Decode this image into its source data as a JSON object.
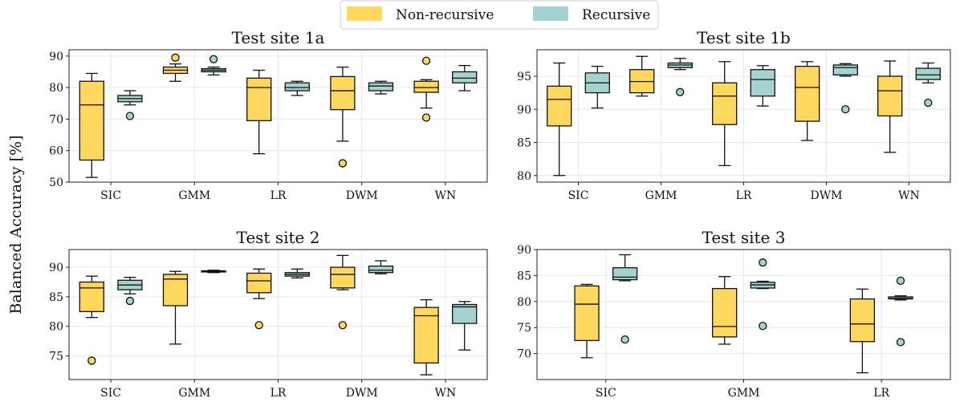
{
  "colors": {
    "non_recursive": "#FFD75E",
    "recursive": "#A4D3D2"
  },
  "legend": {
    "non_recursive": "Non-recursive",
    "recursive": "Recursive"
  },
  "ylabel": "Balanced Accuracy [%]",
  "chart_data": [
    {
      "type": "box",
      "title": "Test site 1a",
      "categories": [
        "SIC",
        "GMM",
        "LR",
        "DWM",
        "WN"
      ],
      "ylim": [
        50,
        92
      ],
      "yticks": [
        50,
        60,
        70,
        80,
        90
      ],
      "grid": true,
      "series": [
        {
          "name": "Non-recursive",
          "boxes": [
            {
              "min": 51.5,
              "q1": 57,
              "median": 74.5,
              "q3": 82,
              "max": 84.5,
              "outliers": []
            },
            {
              "min": 82,
              "q1": 84.5,
              "median": 85.5,
              "q3": 86.5,
              "max": 87.5,
              "outliers": [
                89.5
              ]
            },
            {
              "min": 59,
              "q1": 69.5,
              "median": 80,
              "q3": 83,
              "max": 85.5,
              "outliers": []
            },
            {
              "min": 63,
              "q1": 73,
              "median": 79,
              "q3": 83.5,
              "max": 86.5,
              "outliers": [
                56
              ]
            },
            {
              "min": 73.5,
              "q1": 78.5,
              "median": 80,
              "q3": 82,
              "max": 82.5,
              "outliers": [
                88.5,
                70.5
              ]
            }
          ]
        },
        {
          "name": "Recursive",
          "boxes": [
            {
              "min": 74.5,
              "q1": 75.5,
              "median": 76.5,
              "q3": 77.5,
              "max": 79,
              "outliers": [
                71
              ]
            },
            {
              "min": 84,
              "q1": 85,
              "median": 85.5,
              "q3": 86,
              "max": 86.5,
              "outliers": [
                89
              ]
            },
            {
              "min": 77.5,
              "q1": 79,
              "median": 80,
              "q3": 81.5,
              "max": 82,
              "outliers": []
            },
            {
              "min": 78,
              "q1": 79,
              "median": 80.5,
              "q3": 81.5,
              "max": 82,
              "outliers": []
            },
            {
              "min": 79,
              "q1": 81.5,
              "median": 83,
              "q3": 85,
              "max": 87,
              "outliers": []
            }
          ]
        }
      ]
    },
    {
      "type": "box",
      "title": "Test site 1b",
      "categories": [
        "SIC",
        "GMM",
        "LR",
        "DWM",
        "WN"
      ],
      "ylim": [
        79,
        99
      ],
      "yticks": [
        80,
        85,
        90,
        95
      ],
      "grid": true,
      "series": [
        {
          "name": "Non-recursive",
          "boxes": [
            {
              "min": 80,
              "q1": 87.5,
              "median": 91.5,
              "q3": 93.5,
              "max": 97,
              "outliers": []
            },
            {
              "min": 92,
              "q1": 92.5,
              "median": 94.2,
              "q3": 96,
              "max": 98,
              "outliers": []
            },
            {
              "min": 81.5,
              "q1": 87.7,
              "median": 92,
              "q3": 94,
              "max": 97.2,
              "outliers": []
            },
            {
              "min": 85.3,
              "q1": 88.2,
              "median": 93.3,
              "q3": 96.5,
              "max": 97.2,
              "outliers": []
            },
            {
              "min": 83.5,
              "q1": 89,
              "median": 92.8,
              "q3": 95,
              "max": 97.3,
              "outliers": []
            }
          ]
        },
        {
          "name": "Recursive",
          "boxes": [
            {
              "min": 90.2,
              "q1": 92.5,
              "median": 94,
              "q3": 95.5,
              "max": 96.5,
              "outliers": []
            },
            {
              "min": 96,
              "q1": 96.3,
              "median": 96.7,
              "q3": 97,
              "max": 97.7,
              "outliers": [
                92.6
              ]
            },
            {
              "min": 90.5,
              "q1": 92,
              "median": 94.5,
              "q3": 96,
              "max": 96.6,
              "outliers": []
            },
            {
              "min": 95,
              "q1": 95.2,
              "median": 96.3,
              "q3": 96.7,
              "max": 96.9,
              "outliers": [
                90
              ]
            },
            {
              "min": 94,
              "q1": 94.5,
              "median": 95.2,
              "q3": 96.2,
              "max": 97,
              "outliers": [
                91
              ]
            }
          ]
        }
      ]
    },
    {
      "type": "box",
      "title": "Test site 2",
      "categories": [
        "SIC",
        "GMM",
        "LR",
        "DWM",
        "WN"
      ],
      "ylim": [
        71,
        93
      ],
      "yticks": [
        75,
        80,
        85,
        90
      ],
      "grid": true,
      "series": [
        {
          "name": "Non-recursive",
          "boxes": [
            {
              "min": 81.5,
              "q1": 82.5,
              "median": 86.5,
              "q3": 87.5,
              "max": 88.5,
              "outliers": [
                74.2
              ]
            },
            {
              "min": 77,
              "q1": 83.5,
              "median": 88,
              "q3": 88.8,
              "max": 89.3,
              "outliers": []
            },
            {
              "min": 84.7,
              "q1": 85.7,
              "median": 87.7,
              "q3": 89,
              "max": 89.7,
              "outliers": [
                80.2
              ]
            },
            {
              "min": 86.2,
              "q1": 86.5,
              "median": 88.8,
              "q3": 90,
              "max": 92,
              "outliers": [
                80.2
              ]
            },
            {
              "min": 71.8,
              "q1": 73.8,
              "median": 81.8,
              "q3": 83.2,
              "max": 84.5,
              "outliers": []
            }
          ]
        },
        {
          "name": "Recursive",
          "boxes": [
            {
              "min": 85.5,
              "q1": 86.2,
              "median": 87,
              "q3": 87.8,
              "max": 88.3,
              "outliers": [
                84.3
              ]
            },
            {
              "min": 89.1,
              "q1": 89.2,
              "median": 89.3,
              "q3": 89.4,
              "max": 89.5,
              "outliers": []
            },
            {
              "min": 88.2,
              "q1": 88.5,
              "median": 88.8,
              "q3": 89.1,
              "max": 89.7,
              "outliers": []
            },
            {
              "min": 88.9,
              "q1": 89.1,
              "median": 89.5,
              "q3": 90.2,
              "max": 91.1,
              "outliers": []
            },
            {
              "min": 76,
              "q1": 80.5,
              "median": 83.3,
              "q3": 83.7,
              "max": 84.2,
              "outliers": []
            }
          ]
        }
      ]
    },
    {
      "type": "box",
      "title": "Test site 3",
      "categories": [
        "SIC",
        "GMM",
        "LR"
      ],
      "ylim": [
        65,
        90
      ],
      "yticks": [
        70,
        75,
        80,
        85,
        90
      ],
      "grid": true,
      "series": [
        {
          "name": "Non-recursive",
          "boxes": [
            {
              "min": 69.2,
              "q1": 72.5,
              "median": 79.5,
              "q3": 83,
              "max": 83.3,
              "outliers": []
            },
            {
              "min": 71.8,
              "q1": 73.2,
              "median": 75.2,
              "q3": 82.5,
              "max": 84.8,
              "outliers": []
            },
            {
              "min": 66.3,
              "q1": 72.3,
              "median": 75.7,
              "q3": 80.5,
              "max": 82.4,
              "outliers": []
            }
          ]
        },
        {
          "name": "Recursive",
          "boxes": [
            {
              "min": 84,
              "q1": 84.2,
              "median": 84.7,
              "q3": 86.5,
              "max": 89,
              "outliers": [
                72.7
              ]
            },
            {
              "min": 82.5,
              "q1": 82.6,
              "median": 83.2,
              "q3": 83.7,
              "max": 83.9,
              "outliers": [
                87.5,
                75.3
              ]
            },
            {
              "min": 80.3,
              "q1": 80.5,
              "median": 80.6,
              "q3": 80.9,
              "max": 81.1,
              "outliers": [
                84,
                72.2
              ]
            }
          ]
        }
      ]
    }
  ]
}
